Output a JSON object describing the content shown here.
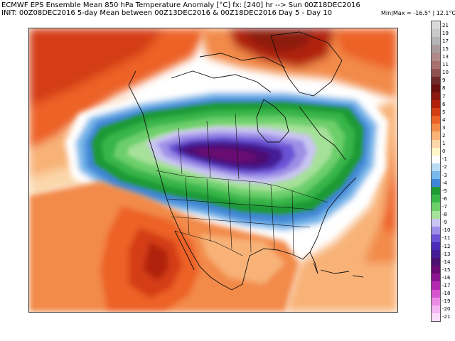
{
  "header": {
    "line1": "ECMWF EPS Ensemble Mean 850 hPa Temperature Anomaly [°C] fx: [240] hr --> Sun 00Z18DEC2016",
    "line2": "INIT: 00Z08DEC2016 5-day Mean between 00Z13DEC2016 & 00Z18DEC2016    Day 5 - Day 10",
    "minmax": "Min|Max = -16.5° | 12.1°C"
  },
  "colorbar": {
    "levels": [
      {
        "label": "21",
        "color": "#d9d9d9"
      },
      {
        "label": "19",
        "color": "#c8c8c8"
      },
      {
        "label": "17",
        "color": "#b4b4b4"
      },
      {
        "label": "15",
        "color": "#a99b9b"
      },
      {
        "label": "13",
        "color": "#b08a8a"
      },
      {
        "label": "11",
        "color": "#a87070"
      },
      {
        "label": "10",
        "color": "#8f5151"
      },
      {
        "label": "9",
        "color": "#6f2a2a"
      },
      {
        "label": "8",
        "color": "#6a1010"
      },
      {
        "label": "7",
        "color": "#8b1a10"
      },
      {
        "label": "6",
        "color": "#b0200c"
      },
      {
        "label": "5",
        "color": "#d43e14"
      },
      {
        "label": "4",
        "color": "#ed6228"
      },
      {
        "label": "3",
        "color": "#f28a48"
      },
      {
        "label": "2",
        "color": "#f8b277"
      },
      {
        "label": "1",
        "color": "#fbd6a9"
      },
      {
        "label": "0",
        "color": "#fff6c8"
      },
      {
        "label": "-1",
        "color": "#ffffff"
      },
      {
        "label": "-2",
        "color": "#b9dcf5"
      },
      {
        "label": "-3",
        "color": "#78b8ea"
      },
      {
        "label": "-4",
        "color": "#3f86d6"
      },
      {
        "label": "-5",
        "color": "#1f9a34"
      },
      {
        "label": "-6",
        "color": "#39b54a"
      },
      {
        "label": "-7",
        "color": "#6ccf6a"
      },
      {
        "label": "-8",
        "color": "#a6e19a"
      },
      {
        "label": "-9",
        "color": "#c9c5f2"
      },
      {
        "label": "-10",
        "color": "#9e8fe6"
      },
      {
        "label": "-11",
        "color": "#6b53d6"
      },
      {
        "label": "-12",
        "color": "#4a2ab8"
      },
      {
        "label": "-13",
        "color": "#451d96"
      },
      {
        "label": "-14",
        "color": "#4e1072"
      },
      {
        "label": "-15",
        "color": "#6a0a73"
      },
      {
        "label": "-16",
        "color": "#8a1590"
      },
      {
        "label": "-17",
        "color": "#b32ab0"
      },
      {
        "label": "-18",
        "color": "#d655cf"
      },
      {
        "label": "-19",
        "color": "#eb8ae5"
      },
      {
        "label": "-20",
        "color": "#f5b6f2"
      },
      {
        "label": "-21",
        "color": "#fbdcf9"
      }
    ]
  },
  "map": {
    "projection": "polar stereographic",
    "region": "North America",
    "anomaly_regions": [
      {
        "name": "cold-core-canada",
        "anomaly": "-16 to -12"
      },
      {
        "name": "cold-band-canada-northeast",
        "anomaly": "-8 to -4"
      },
      {
        "name": "warm-mexico-southwest-us",
        "anomaly": "4 to 8"
      },
      {
        "name": "warm-greenland-arctic",
        "anomaly": "6 to 10"
      },
      {
        "name": "warm-north-pacific",
        "anomaly": "3 to 5"
      },
      {
        "name": "warm-north-atlantic",
        "anomaly": "3 to 6"
      }
    ]
  }
}
